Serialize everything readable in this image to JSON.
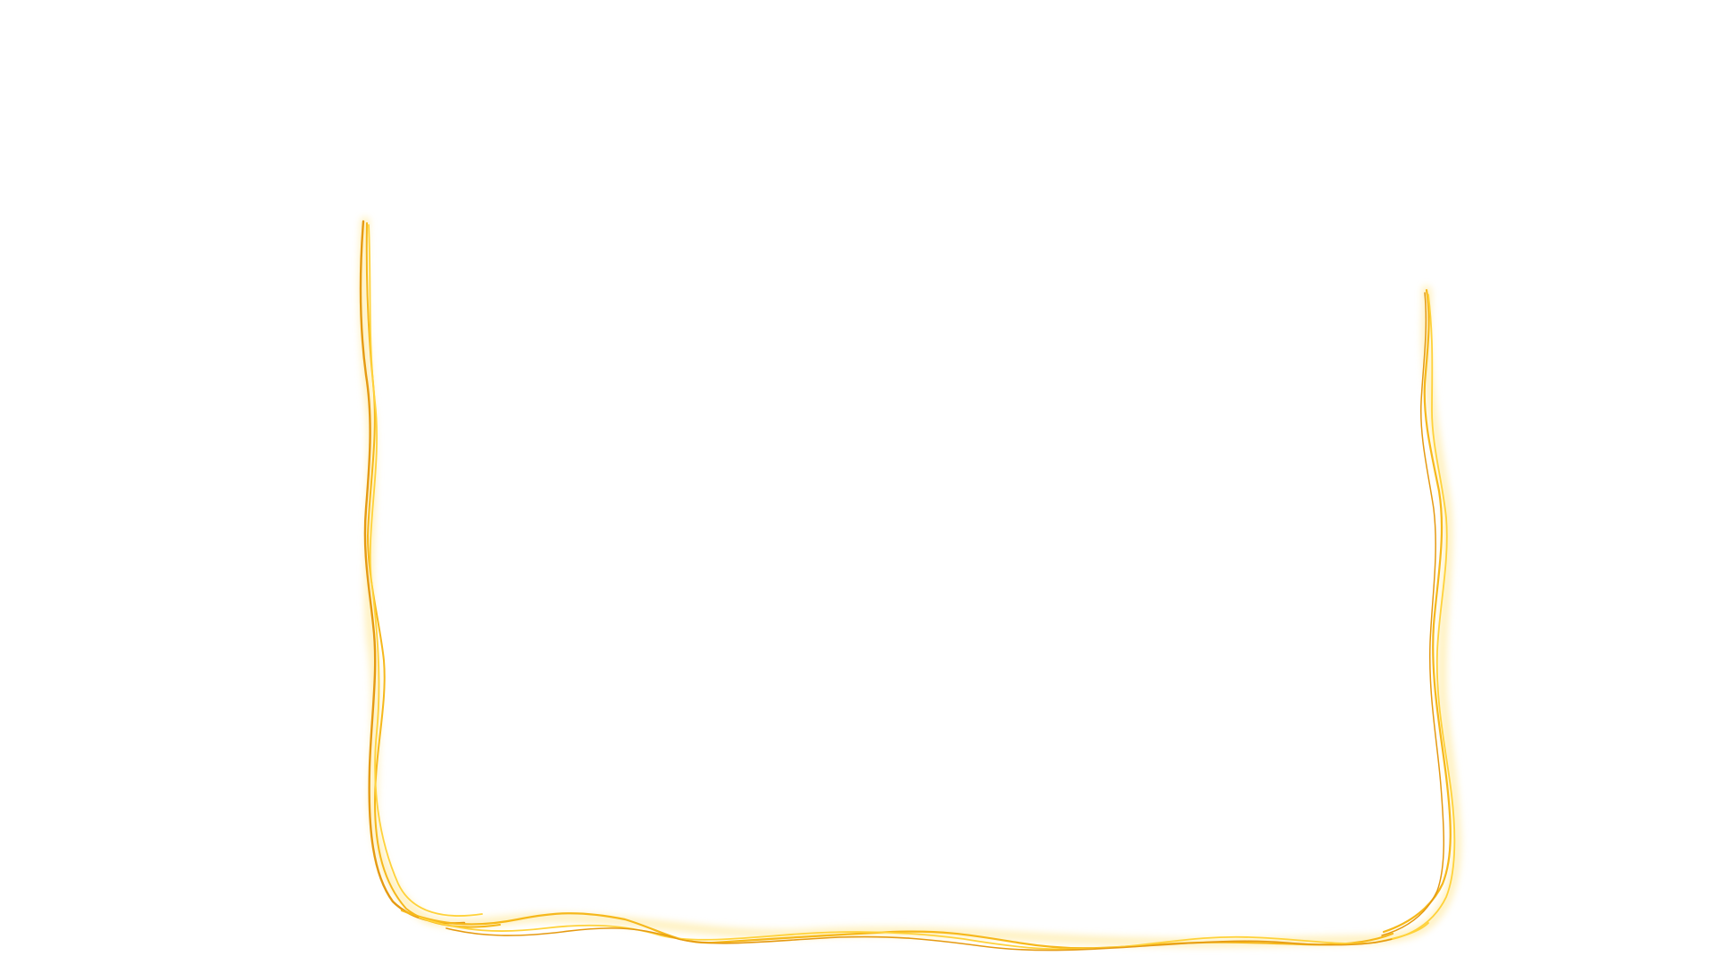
{
  "decoration": {
    "type": "hand-drawn-frame",
    "open_side": "top",
    "colors": {
      "light": "#ffd23a",
      "mid": "#f6b81b",
      "dark": "#e59a12",
      "glow": "#ffe58a"
    }
  }
}
